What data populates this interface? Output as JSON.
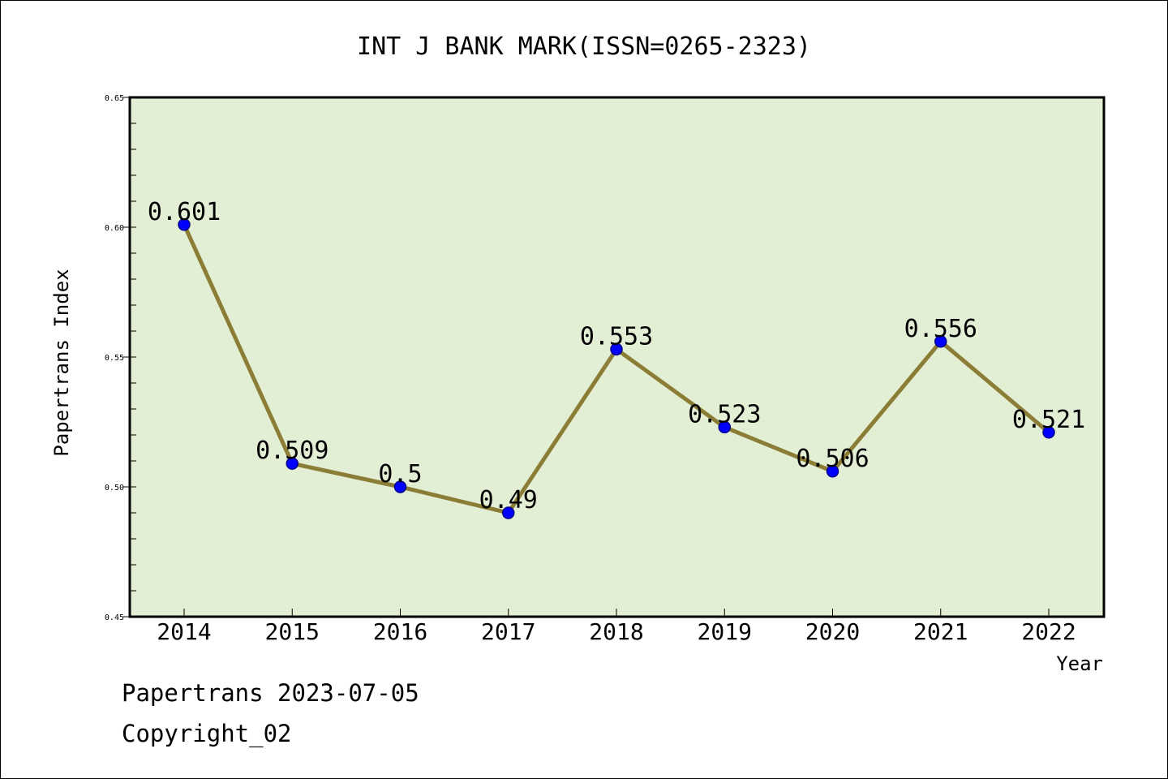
{
  "chart_data": {
    "type": "line",
    "title": "INT J BANK MARK(ISSN=0265-2323)",
    "xlabel": "Year",
    "ylabel": "Papertrans Index",
    "categories": [
      "2014",
      "2015",
      "2016",
      "2017",
      "2018",
      "2019",
      "2020",
      "2021",
      "2022"
    ],
    "values": [
      0.601,
      0.509,
      0.5,
      0.49,
      0.553,
      0.523,
      0.506,
      0.556,
      0.521
    ],
    "data_labels": [
      "0.601",
      "0.509",
      "0.5",
      "0.49",
      "0.553",
      "0.523",
      "0.506",
      "0.556",
      "0.521"
    ],
    "ylim": [
      0.45,
      0.65
    ],
    "yticks": [
      "0.45",
      "0.50",
      "0.55",
      "0.60",
      "0.65"
    ],
    "grid": false,
    "colors": {
      "plot_background": "#e2efd5",
      "line": "#8b7d35",
      "marker": "#0000ff",
      "marker_edge": "#00008b"
    }
  },
  "footer": {
    "line1": "Papertrans 2023-07-05",
    "line2": "Copyright_02"
  }
}
